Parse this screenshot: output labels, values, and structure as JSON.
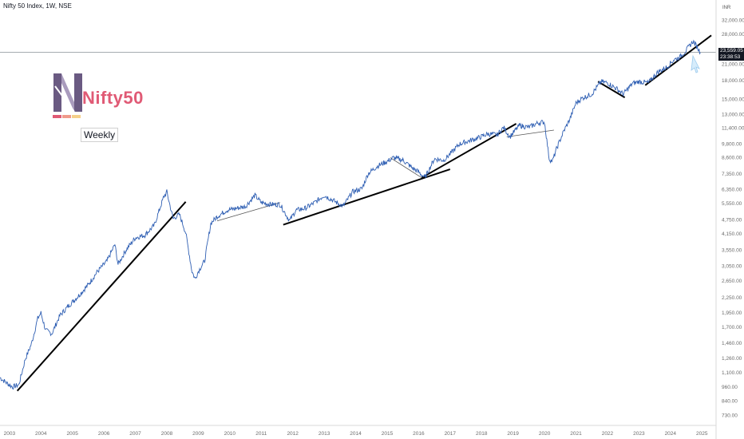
{
  "header": {
    "symbol_title": "Nifty 50 Index, 1W, NSE",
    "currency": "INR"
  },
  "logo": {
    "text": "Nifty50",
    "bar_colors": [
      "#e05a75",
      "#f09a8a",
      "#f5d08a"
    ]
  },
  "badge": {
    "text": "Weekly"
  },
  "price_label": {
    "price": "23,559.05",
    "countdown": "23:38:53"
  },
  "colors": {
    "series": "#2f5fb3",
    "trendline": "#000000",
    "thin_line": "#555555"
  },
  "chart_data": {
    "type": "line",
    "title": "Nifty 50 Index, 1W, NSE",
    "yscale": "log",
    "ylim": [
      680,
      36000
    ],
    "y_ticks": [
      "32,000.00",
      "28,000.00",
      "24,000.00",
      "21,000.00",
      "18,000.00",
      "15,000.00",
      "13,000.00",
      "11,400.00",
      "9,800.00",
      "8,600.00",
      "7,350.00",
      "6,350.00",
      "5,550.00",
      "4,750.00",
      "4,150.00",
      "3,550.00",
      "3,050.00",
      "2,650.00",
      "2,250.00",
      "1,950.00",
      "1,700.00",
      "1,460.00",
      "1,260.00",
      "1,100.00",
      "960.00",
      "840.00",
      "730.00"
    ],
    "x_ticks": [
      "2003",
      "2004",
      "2005",
      "2006",
      "2007",
      "2008",
      "2009",
      "2010",
      "2011",
      "2012",
      "2013",
      "2014",
      "2015",
      "2016",
      "2017",
      "2018",
      "2019",
      "2020",
      "2021",
      "2022",
      "2023",
      "2024",
      "2025"
    ],
    "xlim": [
      2002.7,
      2025.4
    ],
    "series": [
      {
        "x": [
          2002.7,
          2002.9,
          2003.1,
          2003.3,
          2003.5,
          2003.7,
          2003.9,
          2004.0,
          2004.15,
          2004.35,
          2004.6,
          2004.9,
          2005.2,
          2005.5,
          2005.8,
          2006.1,
          2006.35,
          2006.45,
          2006.7,
          2007.0,
          2007.3,
          2007.6,
          2007.9,
          2008.0,
          2008.2,
          2008.4,
          2008.6,
          2008.8,
          2008.9,
          2009.0,
          2009.2,
          2009.4,
          2009.6,
          2009.9,
          2010.2,
          2010.5,
          2010.8,
          2011.0,
          2011.3,
          2011.6,
          2011.9,
          2012.1,
          2012.4,
          2012.7,
          2013.0,
          2013.3,
          2013.6,
          2013.9,
          2014.2,
          2014.4,
          2014.7,
          2015.0,
          2015.2,
          2015.5,
          2015.8,
          2016.0,
          2016.2,
          2016.5,
          2016.8,
          2017.0,
          2017.3,
          2017.6,
          2017.9,
          2018.2,
          2018.5,
          2018.7,
          2018.9,
          2019.2,
          2019.5,
          2019.8,
          2020.0,
          2020.15,
          2020.25,
          2020.4,
          2020.6,
          2020.8,
          2021.0,
          2021.2,
          2021.5,
          2021.8,
          2022.0,
          2022.3,
          2022.5,
          2022.8,
          2023.0,
          2023.3,
          2023.6,
          2023.9,
          2024.1,
          2024.3,
          2024.5,
          2024.72,
          2024.85,
          2024.95
        ],
        "y": [
          1050,
          1000,
          960,
          980,
          1250,
          1450,
          1850,
          1950,
          1650,
          1600,
          1900,
          2100,
          2300,
          2550,
          2900,
          3200,
          3750,
          3100,
          3550,
          4000,
          4100,
          4500,
          5900,
          6200,
          4800,
          5000,
          4200,
          2900,
          2700,
          2900,
          3200,
          4600,
          4900,
          5200,
          5300,
          5400,
          6000,
          5600,
          5500,
          5500,
          4700,
          5200,
          5300,
          5600,
          6000,
          5700,
          5400,
          6200,
          6400,
          7400,
          7950,
          8300,
          8600,
          8400,
          7800,
          7500,
          7100,
          8500,
          8400,
          8900,
          9800,
          10100,
          10400,
          10800,
          10700,
          11500,
          10500,
          11700,
          11500,
          12000,
          12100,
          8500,
          8300,
          9500,
          11000,
          12400,
          14500,
          15200,
          15800,
          17800,
          17600,
          16600,
          15800,
          17500,
          17800,
          17600,
          19500,
          20500,
          21900,
          22500,
          24000,
          26200,
          24800,
          23500
        ]
      }
    ],
    "annotations": {
      "trendlines": [
        {
          "label": "thick",
          "from": [
            2003.25,
            925
          ],
          "to": [
            2008.6,
            5640
          ]
        },
        {
          "label": "thick",
          "from": [
            2011.7,
            4530
          ],
          "to": [
            2017.0,
            7700
          ]
        },
        {
          "label": "thick",
          "from": [
            2016.1,
            7100
          ],
          "to": [
            2019.1,
            11900
          ]
        },
        {
          "label": "thick",
          "from": [
            2021.7,
            17800
          ],
          "to": [
            2022.55,
            15300
          ]
        },
        {
          "label": "thick",
          "from": [
            2023.2,
            17200
          ],
          "to": [
            2025.3,
            27700
          ]
        },
        {
          "label": "thin",
          "from": [
            2009.6,
            4700
          ],
          "to": [
            2011.6,
            5600
          ]
        },
        {
          "label": "thin",
          "from": [
            2015.1,
            8600
          ],
          "to": [
            2016.1,
            7100
          ]
        },
        {
          "label": "thin",
          "from": [
            2018.8,
            10500
          ],
          "to": [
            2020.3,
            11200
          ]
        }
      ]
    },
    "horizontal_price_line": 23559.05,
    "grid": false
  }
}
